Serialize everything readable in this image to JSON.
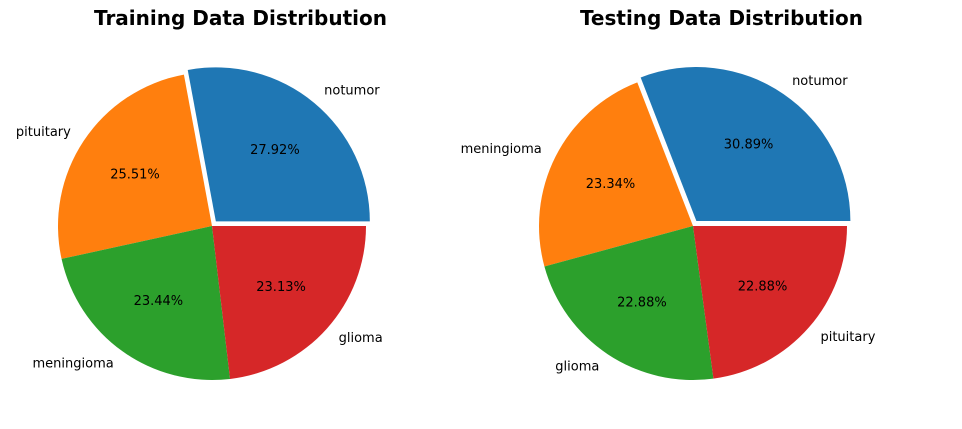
{
  "chart_data": [
    {
      "type": "pie",
      "title": "Training Data Distribution",
      "start_angle_deg": 0,
      "counterclock": true,
      "explode_first": true,
      "slices": [
        {
          "label": "notumor",
          "value": 27.92,
          "pct_label": "27.92%",
          "color": "#1f77b4"
        },
        {
          "label": "pituitary",
          "value": 25.51,
          "pct_label": "25.51%",
          "color": "#ff7f0e"
        },
        {
          "label": "meningioma",
          "value": 23.44,
          "pct_label": "23.44%",
          "color": "#2ca02c"
        },
        {
          "label": "glioma",
          "value": 23.13,
          "pct_label": "23.13%",
          "color": "#d62728"
        }
      ]
    },
    {
      "type": "pie",
      "title": "Testing Data Distribution",
      "start_angle_deg": 0,
      "counterclock": true,
      "explode_first": true,
      "slices": [
        {
          "label": "notumor",
          "value": 30.89,
          "pct_label": "30.89%",
          "color": "#1f77b4"
        },
        {
          "label": "meningioma",
          "value": 23.34,
          "pct_label": "23.34%",
          "color": "#ff7f0e"
        },
        {
          "label": "glioma",
          "value": 22.88,
          "pct_label": "22.88%",
          "color": "#2ca02c"
        },
        {
          "label": "pituitary",
          "value": 22.88,
          "pct_label": "22.88%",
          "color": "#d62728"
        }
      ]
    }
  ]
}
